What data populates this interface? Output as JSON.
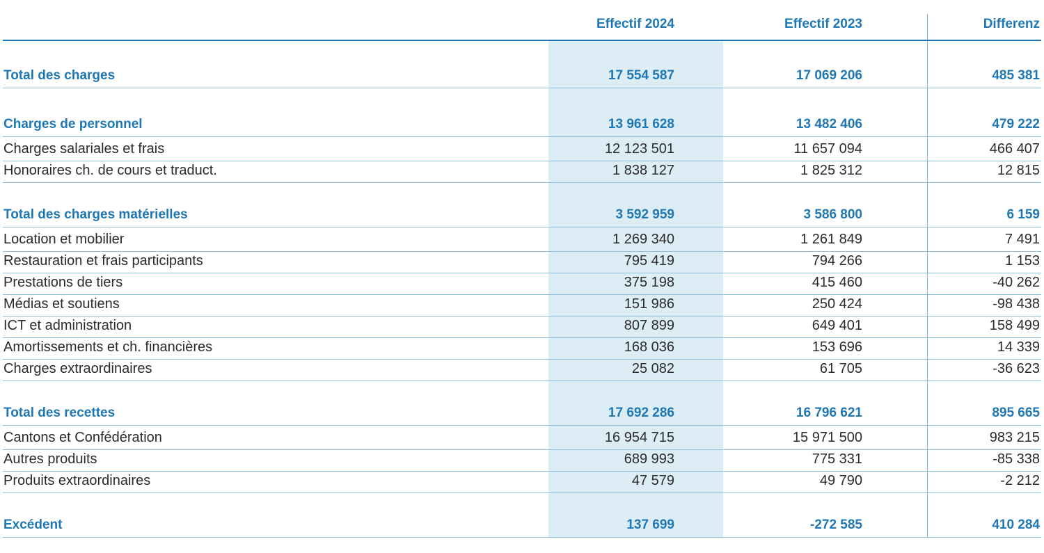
{
  "table": {
    "headers": [
      "Effectif 2024",
      "Effectif 2023",
      "Differenz"
    ],
    "rows": [
      {
        "label": "Total des charges",
        "values": [
          "17 554 587",
          "17 069 206",
          "485 381"
        ],
        "bold": true
      },
      {
        "label": "Charges de personnel",
        "values": [
          "13 961 628",
          "13 482 406",
          "479 222"
        ],
        "bold": true
      },
      {
        "label": "Charges salariales et frais",
        "values": [
          "12 123 501",
          "11 657 094",
          "466 407"
        ],
        "bold": false
      },
      {
        "label": "Honoraires ch. de cours et traduct.",
        "values": [
          "1 838 127",
          "1 825 312",
          "12 815"
        ],
        "bold": false
      },
      {
        "label": "Total des charges matérielles",
        "values": [
          "3 592 959",
          "3 586 800",
          "6 159"
        ],
        "bold": true
      },
      {
        "label": "Location et mobilier",
        "values": [
          "1 269 340",
          "1 261 849",
          "7 491"
        ],
        "bold": false
      },
      {
        "label": "Restauration et frais participants",
        "values": [
          "795 419",
          "794 266",
          "1 153"
        ],
        "bold": false
      },
      {
        "label": "Prestations de tiers",
        "values": [
          "375 198",
          "415 460",
          "-40 262"
        ],
        "bold": false
      },
      {
        "label": "Médias et soutiens",
        "values": [
          "151 986",
          "250 424",
          "-98 438"
        ],
        "bold": false
      },
      {
        "label": "ICT et administration",
        "values": [
          "807 899",
          "649 401",
          "158 499"
        ],
        "bold": false
      },
      {
        "label": "Amortissements et ch. financières",
        "values": [
          "168 036",
          "153 696",
          "14 339"
        ],
        "bold": false
      },
      {
        "label": "Charges extraordinaires",
        "values": [
          "25 082",
          "61 705",
          "-36 623"
        ],
        "bold": false
      },
      {
        "label": "Total des recettes",
        "values": [
          "17 692 286",
          "16 796 621",
          "895 665"
        ],
        "bold": true
      },
      {
        "label": "Cantons et Confédération",
        "values": [
          "16 954 715",
          "15 971 500",
          "983 215"
        ],
        "bold": false
      },
      {
        "label": "Autres produits",
        "values": [
          "689 993",
          "775 331",
          "-85 338"
        ],
        "bold": false
      },
      {
        "label": "Produits extraordinaires",
        "values": [
          "47 579",
          "49 790",
          "-2 212"
        ],
        "bold": false
      },
      {
        "label": "Excédent",
        "values": [
          "137 699",
          "-272 585",
          "410 284"
        ],
        "bold": true
      }
    ]
  }
}
